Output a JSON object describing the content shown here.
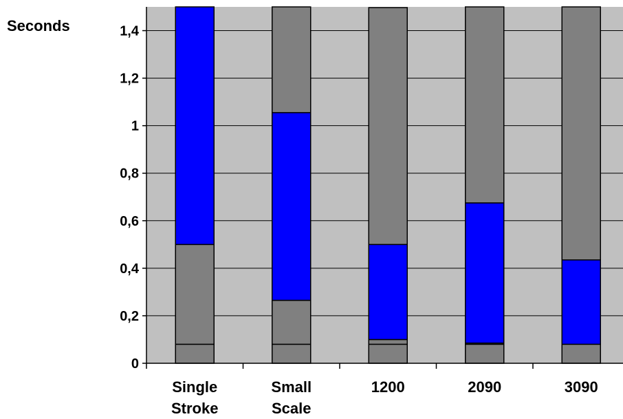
{
  "chart_data": {
    "type": "bar",
    "stacked": true,
    "ylabel": "Seconds",
    "ylim": [
      0,
      1.5
    ],
    "ytick_values": [
      0,
      0.2,
      0.4,
      0.6,
      0.8,
      1,
      1.2,
      1.4
    ],
    "ytick_labels": [
      "0",
      "0,2",
      "0,4",
      "0,6",
      "0,8",
      "1",
      "1,2",
      "1,4"
    ],
    "categories": [
      [
        "Single",
        "Stroke"
      ],
      [
        "Small",
        "Scale"
      ],
      [
        "1200"
      ],
      [
        "2090"
      ],
      [
        "3090"
      ]
    ],
    "series": [
      {
        "color": "#808080",
        "values": [
          0.08,
          0.08,
          0.08,
          0.08,
          0.08
        ]
      },
      {
        "color": "#808080",
        "values": [
          0.42,
          0.185,
          0.02,
          0.005,
          0.0
        ]
      },
      {
        "color": "#0000FF",
        "values": [
          1.0,
          0.79,
          0.4,
          0.59,
          0.355
        ]
      },
      {
        "color": "#808080",
        "values": [
          0.0,
          0.445,
          0.997,
          0.825,
          1.065
        ]
      }
    ],
    "grid": true,
    "grid_axis": "y",
    "plot_background": "#C0C0C0",
    "legend": "none"
  }
}
